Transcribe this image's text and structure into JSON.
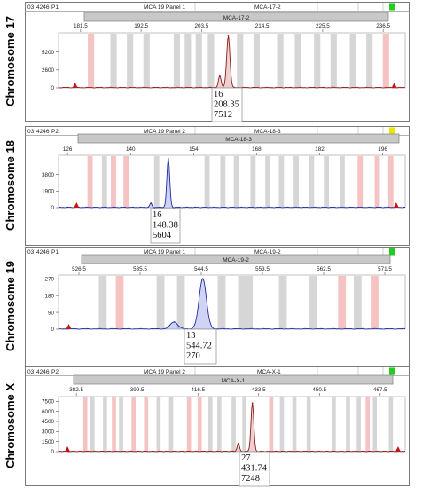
{
  "chart_data": [
    {
      "type": "line",
      "chromosome_label": "Chromosome 17",
      "header": {
        "run": "03",
        "id": "4246",
        "primer": "P1",
        "panel": "MCA 19 Panel 1",
        "marker": "MCA-17-2",
        "status_color": "#22cc22"
      },
      "marker_bar_label": "MCA-17-2",
      "x_ticks": [
        "181.5",
        "192.5",
        "203.5",
        "214.5",
        "225.5",
        "236.5"
      ],
      "xlim": [
        177.5,
        240.5
      ],
      "y_ticks": [
        "5200",
        "2600",
        "0"
      ],
      "ylim": [
        0,
        8000
      ],
      "series_color": "#8b1a1a",
      "fill_color": "rgba(205,120,120,0.35)",
      "grey_bins": [
        187.5,
        190.5,
        193.5,
        199.0,
        201.0,
        203.0,
        205.2,
        210.5,
        213.5,
        217.8,
        221.0,
        224.5,
        227.5,
        231.0,
        234.0
      ],
      "pink_bins": [
        183.4,
        237.0
      ],
      "peaks": [
        {
          "x": 206.8,
          "y": 1700,
          "w": 0.35
        },
        {
          "x": 208.35,
          "y": 7512,
          "w": 0.42
        }
      ],
      "markers": [
        {
          "x": 180.5
        },
        {
          "x": 238.5
        }
      ],
      "callout": {
        "lines": [
          "16",
          "208.35",
          "7512"
        ],
        "x": 208.35
      }
    },
    {
      "type": "line",
      "chromosome_label": "Chromosome 18",
      "header": {
        "run": "03",
        "id": "4246",
        "primer": "P2",
        "panel": "MCA 19 Panel 2",
        "marker": "MCA-18-3",
        "status_color": "#e8e800"
      },
      "marker_bar_label": "MCA-18-3",
      "x_ticks": [
        "126",
        "140",
        "154",
        "168",
        "182",
        "196"
      ],
      "xlim": [
        124,
        201
      ],
      "y_ticks": [
        "3800",
        "1900",
        "0"
      ],
      "ylim": [
        0,
        6000
      ],
      "series_color": "#1c2aa8",
      "fill_color": "rgba(120,130,220,0.35)",
      "grey_bins": [
        134.2,
        145.8,
        157.0,
        160.5,
        163.5,
        167.2,
        170.5,
        173.5,
        176.8,
        180.2,
        183.5,
        187.0
      ],
      "pink_bins": [
        131.0,
        136.2,
        139.0,
        191.0,
        194.8,
        197.8
      ],
      "peaks": [
        {
          "x": 144.5,
          "y": 500,
          "w": 0.3
        },
        {
          "x": 148.38,
          "y": 5604,
          "w": 0.45
        }
      ],
      "markers": [
        {
          "x": 128.0
        },
        {
          "x": 199.0
        }
      ],
      "callout": {
        "lines": [
          "16",
          "148.38",
          "5604"
        ],
        "x": 148.38
      }
    },
    {
      "type": "line",
      "chromosome_label": "Chromosome 19",
      "header": {
        "run": "03",
        "id": "4246",
        "primer": "P1",
        "panel": "MCA 19 Panel 1",
        "marker": "MCA-19-2",
        "status_color": "#22cc22"
      },
      "marker_bar_label": "MCA-19-2",
      "x_ticks": [
        "526.5",
        "535.5",
        "544.5",
        "553.5",
        "562.5",
        "571.5"
      ],
      "xlim": [
        523.5,
        574.5
      ],
      "y_ticks": [
        "270",
        "180",
        "90",
        "0"
      ],
      "ylim": [
        0,
        290
      ],
      "series_color": "#1c2aa8",
      "fill_color": "rgba(120,130,220,0.35)",
      "grey_bins": [
        530.0,
        538.5,
        541.5,
        547.5,
        550.5,
        551.5,
        556.5,
        561.0,
        567.5
      ],
      "pink_bins": [
        532.5,
        565.2,
        570.0
      ],
      "peaks": [
        {
          "x": 540.5,
          "y": 38,
          "w": 0.75
        },
        {
          "x": 544.72,
          "y": 270,
          "w": 0.75
        }
      ],
      "markers": [
        {
          "x": 525.0
        }
      ],
      "callout": {
        "lines": [
          "13",
          "544.72",
          "270"
        ],
        "x": 544.72
      }
    },
    {
      "type": "line",
      "chromosome_label": "Chromosome X",
      "header": {
        "run": "03",
        "id": "4246",
        "primer": "P2",
        "panel": "MCA 19 Panel 2",
        "marker": "MCA-X-1",
        "status_color": "#22cc22"
      },
      "marker_bar_label": "MCA-X-1",
      "x_ticks": [
        "382.5",
        "399.5",
        "416.5",
        "433.5",
        "450.5",
        "467.5"
      ],
      "xlim": [
        377.5,
        474.5
      ],
      "y_ticks": [
        "7500",
        "6000",
        "4500",
        "3000",
        "1500",
        "0"
      ],
      "ylim": [
        0,
        8200
      ],
      "series_color": "#8b1a1a",
      "fill_color": "rgba(205,120,120,0.35)",
      "grey_bins": [
        387.0,
        390.5,
        395.0,
        405.5,
        409.0,
        420.0,
        422.5,
        426.5,
        429.5,
        440.0,
        443.5,
        447.5,
        454.5,
        458.5,
        461.5,
        466.0,
        470.5
      ],
      "pink_bins": [
        385.0,
        393.0,
        398.5,
        402.0,
        414.0,
        417.0,
        437.0,
        464.0
      ],
      "peaks": [
        {
          "x": 427.8,
          "y": 1200,
          "w": 0.45
        },
        {
          "x": 431.74,
          "y": 7248,
          "w": 0.55
        }
      ],
      "markers": [
        {
          "x": 380.0
        },
        {
          "x": 472.5
        }
      ],
      "callout": {
        "lines": [
          "27",
          "431.74",
          "7248"
        ],
        "x": 431.74
      }
    }
  ]
}
